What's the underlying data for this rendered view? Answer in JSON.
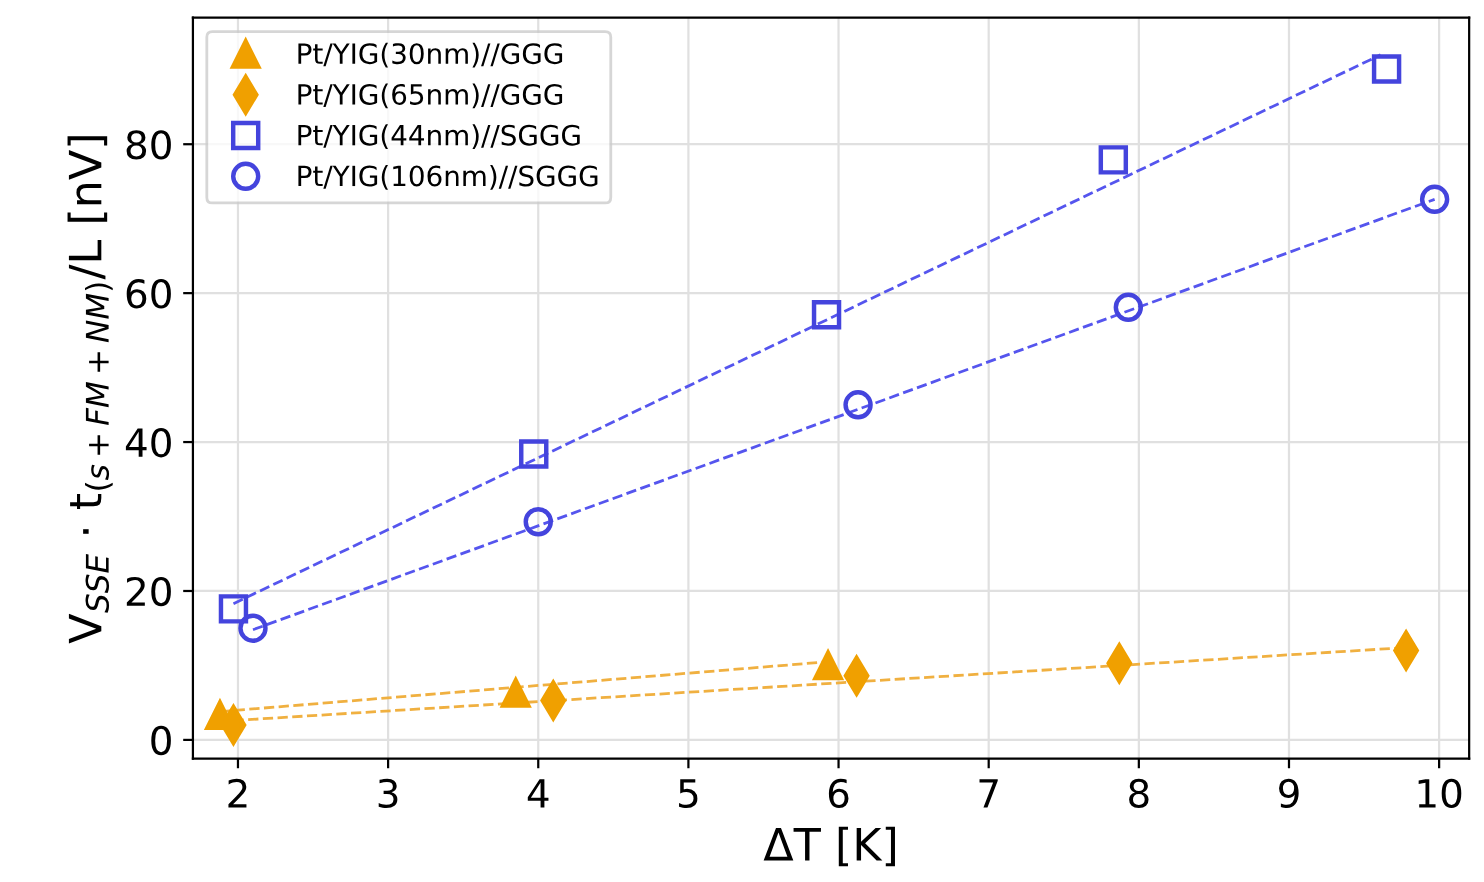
{
  "chart_data": {
    "type": "scatter",
    "xlabel": "ΔT [K]",
    "ylabel": "V$_{SSE}$ · t$_{(s+FM+NM)}$/L [nV]",
    "xlim": [
      1.7,
      10.2
    ],
    "ylim": [
      -2.5,
      97
    ],
    "xticks": [
      2,
      3,
      4,
      5,
      6,
      7,
      8,
      9,
      10
    ],
    "yticks": [
      0,
      20,
      40,
      60,
      80
    ],
    "grid": true,
    "legend": "top left",
    "series": [
      {
        "name": "Pt/YIG(30nm)//GGG",
        "marker": "triangle",
        "color": "#f0a000",
        "x": [
          1.88,
          3.85,
          5.93
        ],
        "values": [
          3.3,
          6.3,
          10.0
        ]
      },
      {
        "name": "Pt/YIG(65nm)//GGG",
        "marker": "diamond",
        "color": "#f0a000",
        "x": [
          1.97,
          4.1,
          6.12,
          7.87,
          9.78
        ],
        "values": [
          2.0,
          5.3,
          8.6,
          10.3,
          12.0
        ]
      },
      {
        "name": "Pt/YIG(44nm)//SGGG",
        "marker": "square",
        "color": "#4444dd",
        "x": [
          1.97,
          3.97,
          5.92,
          7.83,
          9.65
        ],
        "values": [
          17.6,
          38.4,
          57.1,
          77.9,
          90.1
        ]
      },
      {
        "name": "Pt/YIG(106nm)//SGGG",
        "marker": "circle",
        "color": "#4444dd",
        "x": [
          2.1,
          4.0,
          6.13,
          7.93,
          9.97
        ],
        "values": [
          15.0,
          29.3,
          45.0,
          58.1,
          72.6
        ]
      },
      {
        "type": "line",
        "line_style": "dashed",
        "color": "#f0b040",
        "x": [
          1.88,
          5.93
        ],
        "values": [
          3.8,
          10.5
        ]
      },
      {
        "type": "line",
        "line_style": "dashed",
        "color": "#f0b040",
        "x": [
          1.97,
          9.78
        ],
        "values": [
          2.6,
          12.4
        ]
      },
      {
        "type": "line",
        "line_style": "dashed",
        "color": "#5555ee",
        "x": [
          1.97,
          9.61
        ],
        "values": [
          18.3,
          92.0
        ]
      },
      {
        "type": "line",
        "line_style": "dashed",
        "color": "#5555ee",
        "x": [
          2.1,
          9.97
        ],
        "values": [
          14.8,
          72.6
        ]
      }
    ]
  }
}
